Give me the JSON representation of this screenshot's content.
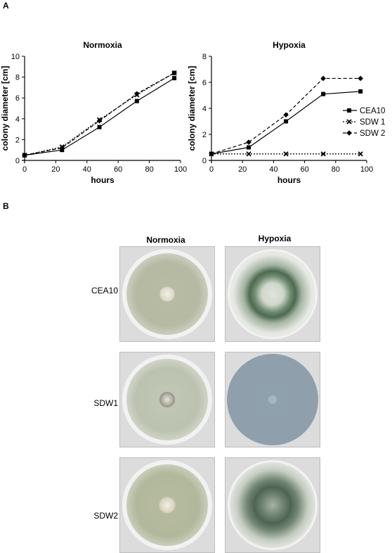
{
  "panels": {
    "a": "A",
    "b": "B"
  },
  "chart_data": [
    {
      "type": "line",
      "title": "Normoxia",
      "xlabel": "hours",
      "ylabel": "colony diameter [cm]",
      "xlim": [
        0,
        100
      ],
      "ylim": [
        0,
        10
      ],
      "xticks": [
        0,
        20,
        40,
        60,
        80,
        100
      ],
      "yticks": [
        0,
        2,
        4,
        6,
        8,
        10
      ],
      "x": [
        0,
        24,
        48,
        72,
        96
      ],
      "series": [
        {
          "name": "CEA10",
          "marker": "square",
          "style": "solid",
          "values": [
            0.5,
            1.0,
            3.2,
            5.7,
            7.9
          ]
        },
        {
          "name": "SDW 1",
          "marker": "x",
          "style": "dotted",
          "values": [
            0.5,
            1.3,
            3.9,
            6.3,
            8.4
          ]
        },
        {
          "name": "SDW 2",
          "marker": "diamond",
          "style": "dashed",
          "values": [
            0.5,
            1.2,
            3.8,
            6.4,
            8.4
          ]
        }
      ]
    },
    {
      "type": "line",
      "title": "Hypoxia",
      "xlabel": "hours",
      "ylabel": "colony diameter [cm]",
      "xlim": [
        0,
        100
      ],
      "ylim": [
        0,
        8
      ],
      "xticks": [
        0,
        20,
        40,
        60,
        80,
        100
      ],
      "yticks": [
        0,
        2,
        4,
        6,
        8
      ],
      "x": [
        0,
        24,
        48,
        72,
        96
      ],
      "legend": "right",
      "series": [
        {
          "name": "CEA10",
          "marker": "square",
          "style": "solid",
          "values": [
            0.5,
            1.0,
            3.0,
            5.1,
            5.3
          ]
        },
        {
          "name": "SDW 1",
          "marker": "x",
          "style": "dotted",
          "values": [
            0.5,
            0.5,
            0.5,
            0.5,
            0.5
          ]
        },
        {
          "name": "SDW 2",
          "marker": "diamond",
          "style": "dashed",
          "values": [
            0.5,
            1.4,
            3.5,
            6.3,
            6.3
          ]
        }
      ]
    }
  ],
  "photo_grid": {
    "columns": [
      "Normoxia",
      "Hypoxia"
    ],
    "rows": [
      "CEA10",
      "SDW1",
      "SDW2"
    ]
  }
}
